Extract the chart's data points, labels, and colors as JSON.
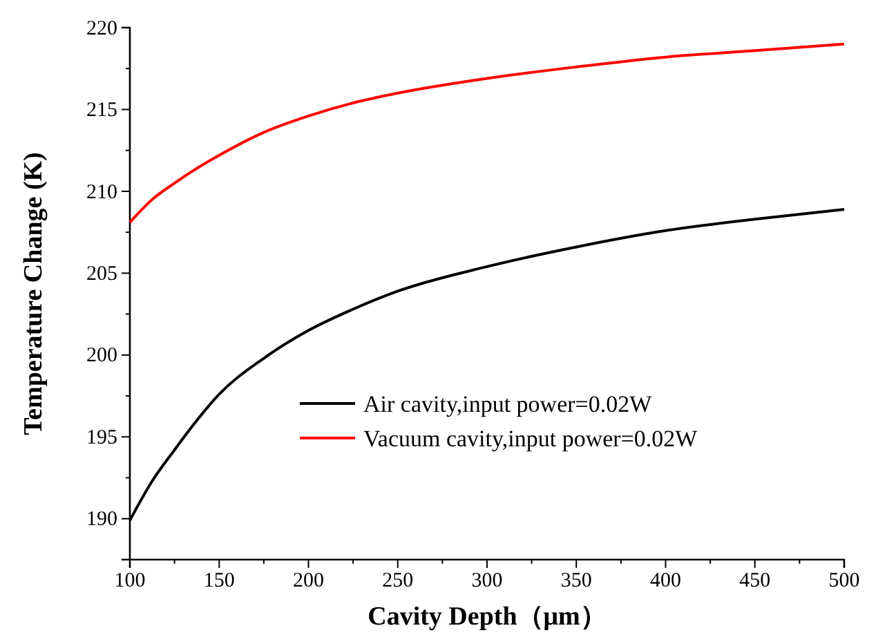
{
  "chart_data": {
    "type": "line",
    "xlabel": "Cavity Depth（μm）",
    "ylabel": "Temperature Change (K)",
    "x": [
      100,
      112.5,
      125,
      137.5,
      150,
      175,
      200,
      225,
      250,
      300,
      350,
      400,
      450,
      500
    ],
    "xlim": [
      100,
      500
    ],
    "xticks": [
      100,
      150,
      200,
      250,
      300,
      350,
      400,
      450,
      500
    ],
    "ylim": [
      187.5,
      220
    ],
    "yticks": [
      190,
      195,
      200,
      205,
      210,
      215,
      220
    ],
    "series": [
      {
        "name": "Air cavity,input power=0.02W",
        "color": "#000000",
        "values": [
          189.9,
          192.3,
          194.2,
          196.0,
          197.6,
          199.8,
          201.5,
          202.8,
          203.9,
          205.4,
          206.6,
          207.6,
          208.3,
          208.9
        ]
      },
      {
        "name": "Vacuum cavity,input power=0.02W",
        "color": "#ff0000",
        "values": [
          208.1,
          209.5,
          210.5,
          211.4,
          212.2,
          213.6,
          214.6,
          215.4,
          216.0,
          216.9,
          217.6,
          218.2,
          218.6,
          219.0
        ]
      }
    ],
    "grid": false,
    "legend": "bottom",
    "line_style": "solid",
    "marker": "none"
  }
}
